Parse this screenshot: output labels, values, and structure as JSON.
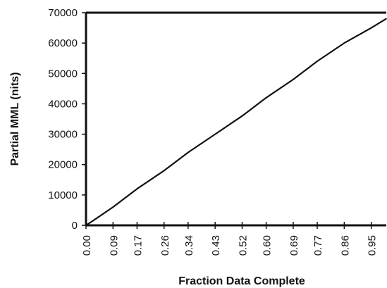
{
  "chart_data": {
    "type": "line",
    "xlabel": "Fraction Data Complete",
    "ylabel": "Partial MML (nits)",
    "title": "",
    "xlim": [
      0,
      1
    ],
    "ylim": [
      0,
      70000
    ],
    "grid": false,
    "y_ticks": [
      0,
      10000,
      20000,
      30000,
      40000,
      50000,
      60000,
      70000
    ],
    "y_tick_labels": [
      "0",
      "10000",
      "20000",
      "30000",
      "40000",
      "50000",
      "60000",
      "70000"
    ],
    "x_ticks": [
      0.0,
      0.09,
      0.17,
      0.26,
      0.34,
      0.43,
      0.52,
      0.6,
      0.69,
      0.77,
      0.86,
      0.95
    ],
    "x_tick_labels": [
      "0.00",
      "0.09",
      "0.17",
      "0.26",
      "0.34",
      "0.43",
      "0.52",
      "0.60",
      "0.69",
      "0.77",
      "0.86",
      "0.95"
    ],
    "series": [
      {
        "x": [
          0.0,
          0.02,
          0.09,
          0.17,
          0.26,
          0.34,
          0.43,
          0.52,
          0.6,
          0.69,
          0.77,
          0.86,
          0.95,
          1.0
        ],
        "y": [
          0,
          1300,
          6000,
          12000,
          18000,
          24000,
          30000,
          36000,
          42000,
          48000,
          54000,
          60000,
          65000,
          68000
        ]
      }
    ],
    "line_color": "#111111"
  }
}
